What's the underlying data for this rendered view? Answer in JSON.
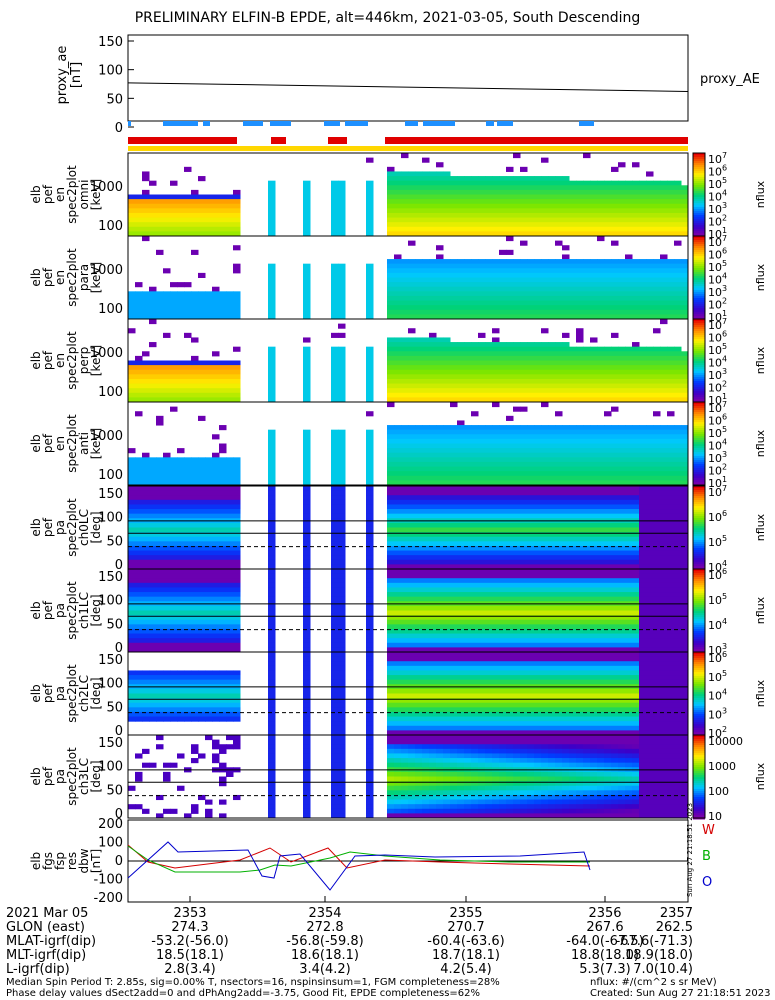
{
  "title": "PRELIMINARY ELFIN-B EPDE, alt=446km, 2021-03-05, South Descending",
  "proxy_ae": {
    "ylabel": "proxy_ae\n[nT]",
    "legend": "proxy_AE",
    "yticks": [
      "150",
      "100",
      "50",
      "0"
    ],
    "values": [
      77,
      62
    ]
  },
  "spectrograms": [
    {
      "label": "elb\npef\nen\nspec2plot\nomni\n[keV]",
      "yticks": [
        "1000",
        "100"
      ],
      "unit": "nflux"
    },
    {
      "label": "elb\npef\nen\nspec2plot\npara\n[keV]",
      "yticks": [
        "1000",
        "100"
      ],
      "unit": "nflux"
    },
    {
      "label": "elb\npef\nen\nspec2plot\nperp\n[keV]",
      "yticks": [
        "1000",
        "100"
      ],
      "unit": "nflux"
    },
    {
      "label": "elb\npef\nen\nspec2plot\nanti\n[keV]",
      "yticks": [
        "1000",
        "100"
      ],
      "unit": "nflux"
    },
    {
      "label": "elb\npef\npa\nspec2plot\nch0LC\n[deg]",
      "yticks": [
        "150",
        "100",
        "50",
        "0"
      ],
      "unit": "nflux"
    },
    {
      "label": "elb\npef\npa\nspec2plot\nch1LC\n[deg]",
      "yticks": [
        "150",
        "100",
        "50",
        "0"
      ],
      "unit": "nflux"
    },
    {
      "label": "elb\npef\npa\nspec2plot\nch2LC\n[deg]",
      "yticks": [
        "150",
        "100",
        "50",
        "0"
      ],
      "unit": "nflux"
    },
    {
      "label": "elb\npef\npa\nspec2plot\nch3LC\n[deg]",
      "yticks": [
        "150",
        "100",
        "50",
        "0"
      ],
      "unit": "nflux"
    }
  ],
  "colorbar_ticks": [
    [
      "10^7",
      "10^6",
      "10^5",
      "10^4",
      "10^3",
      "10^2",
      "10^1"
    ],
    [
      "10^7",
      "10^6",
      "10^5",
      "10^4",
      "10^3",
      "10^2",
      "10^1"
    ],
    [
      "10^7",
      "10^6",
      "10^5",
      "10^4",
      "10^3",
      "10^2",
      "10^1"
    ],
    [
      "10^7",
      "10^6",
      "10^5",
      "10^4",
      "10^3",
      "10^2",
      "10^1"
    ],
    [
      "10^7",
      "10^6",
      "10^5",
      "10^4"
    ],
    [
      "10^6",
      "10^5",
      "10^4",
      "10^3"
    ],
    [
      "10^6",
      "10^5",
      "10^4",
      "10^3",
      "10^2"
    ],
    [
      "10000",
      "1000",
      "100",
      "10"
    ]
  ],
  "residual": {
    "label": "elb\nfgs\nfsp\nres\ndbw\n[nT]",
    "yticks": [
      "200",
      "100",
      "0",
      "-100",
      "-200"
    ],
    "legend": [
      {
        "name": "W",
        "color": "#d40000"
      },
      {
        "name": "B",
        "color": "#00b000"
      },
      {
        "name": "O",
        "color": "#0000cc"
      }
    ],
    "side_text": "Sun Aug 27 21:18:51 2023"
  },
  "xaxis": {
    "row_labels": [
      "2021 Mar 05",
      "GLON (east)",
      "MLAT-igrf(dip)",
      "MLT-igrf(dip)",
      "L-igrf(dip)"
    ],
    "columns": [
      [
        "2353",
        "274.3",
        "-53.2(-56.0)",
        "18.5(18.1)",
        "2.8(3.4)"
      ],
      [
        "2354",
        "272.8",
        "-56.8(-59.8)",
        "18.6(18.1)",
        "3.4(4.2)"
      ],
      [
        "2355",
        "270.7",
        "-60.4(-63.6)",
        "18.7(18.1)",
        "4.2(5.4)"
      ],
      [
        "2356",
        "267.6",
        "-64.0(-67.5)",
        "18.8(18.0)",
        "5.3(7.3)"
      ],
      [
        "2357",
        "262.5",
        "-67.6(-71.3)",
        "18.9(18.0)",
        "7.0(10.4)"
      ]
    ]
  },
  "footer": {
    "left1": "Median Spin Period T: 2.85s, sig=0.00% T, nsectors=16, nspinsinsum=1, FGM completeness=28%",
    "left2": "Phase delay values dSect2add=0 and dPhAng2add=-3.75, Good Fit, EPDE completeness=62%",
    "right1": "nflux: #/(cm^2 s sr MeV)",
    "right2": "Created: Sun Aug 27 21:18:51 2023"
  },
  "colors": {
    "red_bar": "#e00000",
    "blue_bar": "#1e90ff",
    "yellow_bar": "#ffd700"
  },
  "chart_data": {
    "type": "heatmap",
    "title": "PRELIMINARY ELFIN-B EPDE, alt=446km, 2021-03-05, South Descending",
    "x": [
      "2353",
      "2354",
      "2355",
      "2356",
      "2357"
    ],
    "proxy_ae_series": {
      "name": "proxy_AE",
      "y_start": 77,
      "y_end": 62,
      "ylim": [
        0,
        150
      ]
    },
    "energy_ylim_keV": [
      50,
      3000
    ],
    "pitch_ylim_deg": [
      0,
      180
    ],
    "residual_ylim_nT": [
      -200,
      200
    ]
  }
}
